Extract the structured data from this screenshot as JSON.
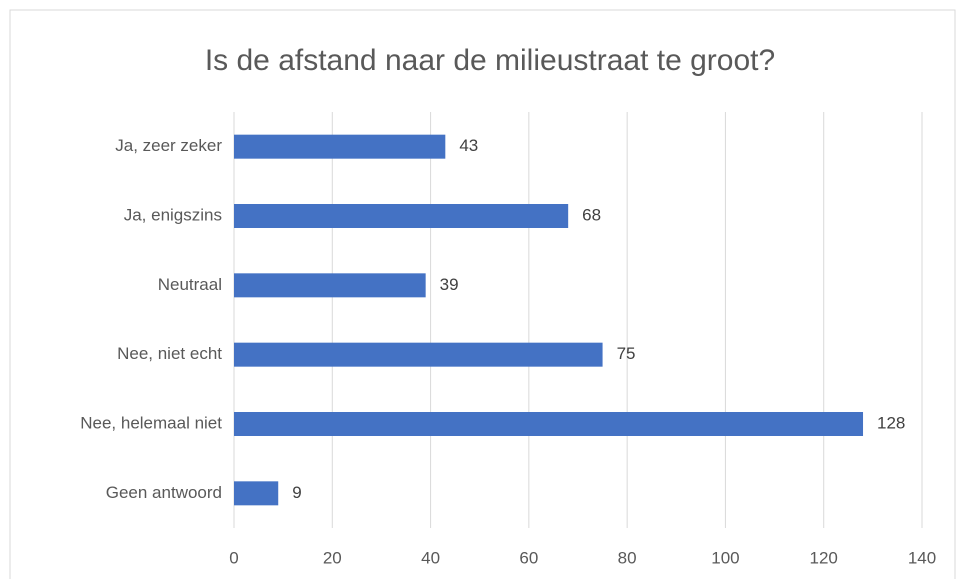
{
  "chart_data": {
    "type": "bar",
    "horizontal": true,
    "title": "Is de afstand naar de milieustraat te groot?",
    "categories": [
      "Ja, zeer zeker",
      "Ja, enigszins",
      "Neutraal",
      "Nee, niet echt",
      "Nee, helemaal niet",
      "Geen antwoord"
    ],
    "values": [
      43,
      68,
      39,
      75,
      128,
      9
    ],
    "color": "#4472c4",
    "xlim": [
      0,
      140
    ],
    "xticks": [
      0,
      20,
      40,
      60,
      80,
      100,
      120,
      140
    ],
    "grid": true,
    "data_labels": true
  }
}
